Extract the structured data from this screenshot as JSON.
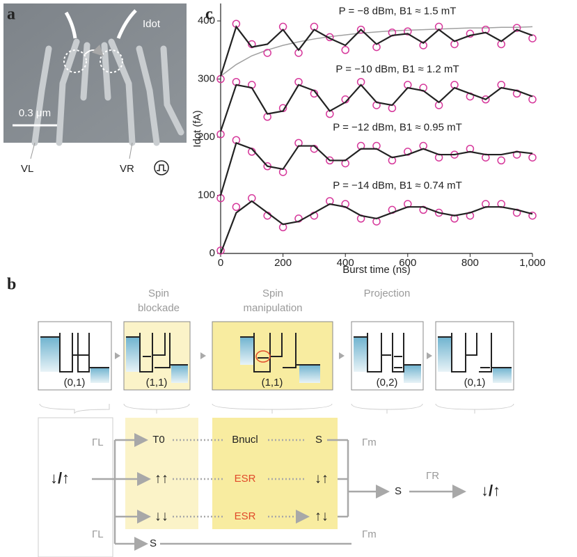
{
  "panel_a": {
    "label": "a",
    "current": "Idot",
    "scale": "0.3 μm",
    "gate_left": "VL",
    "gate_right": "VR"
  },
  "panel_b": {
    "label": "b",
    "stage_titles": [
      [
        "Spin",
        "blockade"
      ],
      [
        "Spin",
        "manipulation"
      ],
      [
        "Projection"
      ]
    ],
    "states": [
      "(0,1)",
      "(1,1)",
      "(1,1)",
      "(0,2)",
      "(0,1)"
    ],
    "initial": "↓/↑",
    "rates_left": [
      "ΓL",
      "ΓL"
    ],
    "pairs": [
      "T0",
      "↑↑",
      "↓↓",
      "S"
    ],
    "processes": [
      "Bnucl",
      "ESR",
      "ESR"
    ],
    "results": [
      "S",
      "↓↑",
      "↑↓"
    ],
    "rates_m": [
      "Γm",
      "Γm"
    ],
    "projected": "S",
    "rate_r": "ΓR",
    "final": "↓/↑"
  },
  "chart_data": {
    "type": "line",
    "label": "c",
    "x_label": "Burst time (ns)",
    "y_label": "Idot (fA)",
    "xlim": [
      0,
      1000
    ],
    "ylim": [
      0,
      430
    ],
    "xticks": [
      0,
      200,
      400,
      600,
      800,
      {
        "value": 1000,
        "label": "1,000"
      }
    ],
    "yticks": [
      0,
      100,
      200,
      300,
      400
    ],
    "x": [
      0,
      50,
      100,
      150,
      200,
      250,
      300,
      350,
      400,
      450,
      500,
      550,
      600,
      650,
      700,
      750,
      800,
      850,
      900,
      950,
      1000
    ],
    "marker_color": "#d6389b",
    "series": [
      {
        "name": "P = −8 dBm, B1 ≈ 1.5 mT",
        "color": "#222222",
        "values": [
          305,
          390,
          355,
          360,
          385,
          350,
          385,
          370,
          358,
          385,
          360,
          375,
          378,
          362,
          385,
          365,
          375,
          380,
          365,
          385,
          375
        ],
        "points": [
          300,
          395,
          360,
          345,
          390,
          345,
          390,
          372,
          350,
          385,
          355,
          380,
          382,
          358,
          390,
          360,
          378,
          385,
          360,
          388,
          370
        ]
      },
      {
        "name": "P = −10 dBm, B1 ≈ 1.2 mT",
        "color": "#222222",
        "values": [
          210,
          290,
          285,
          240,
          245,
          290,
          280,
          245,
          260,
          290,
          260,
          255,
          285,
          280,
          260,
          285,
          275,
          265,
          285,
          280,
          270
        ],
        "points": [
          205,
          295,
          290,
          235,
          250,
          295,
          275,
          240,
          265,
          295,
          255,
          250,
          290,
          285,
          255,
          290,
          270,
          265,
          290,
          275,
          265
        ]
      },
      {
        "name": "P = −12 dBm, B1 ≈ 0.95 mT",
        "color": "#222222",
        "values": [
          100,
          190,
          180,
          150,
          145,
          185,
          185,
          160,
          160,
          180,
          180,
          165,
          170,
          180,
          170,
          170,
          175,
          170,
          170,
          175,
          172
        ],
        "points": [
          95,
          195,
          175,
          150,
          140,
          190,
          180,
          160,
          155,
          185,
          185,
          160,
          175,
          185,
          165,
          170,
          180,
          165,
          160,
          170,
          165
        ]
      },
      {
        "name": "P = −14 dBm, B1 ≈ 0.74 mT",
        "color": "#222222",
        "values": [
          0,
          70,
          90,
          70,
          50,
          55,
          70,
          85,
          80,
          65,
          60,
          70,
          80,
          80,
          70,
          65,
          70,
          80,
          80,
          75,
          68
        ],
        "points": [
          5,
          80,
          95,
          65,
          45,
          60,
          65,
          90,
          85,
          60,
          55,
          75,
          85,
          75,
          70,
          60,
          65,
          85,
          85,
          70,
          65
        ]
      }
    ],
    "envelope": {
      "color": "#a0a0a0",
      "values": [
        305,
        325,
        340,
        350,
        358,
        364,
        369,
        373,
        376,
        379,
        381,
        383,
        384,
        385,
        386,
        387,
        388,
        388,
        389,
        389,
        390
      ]
    }
  }
}
